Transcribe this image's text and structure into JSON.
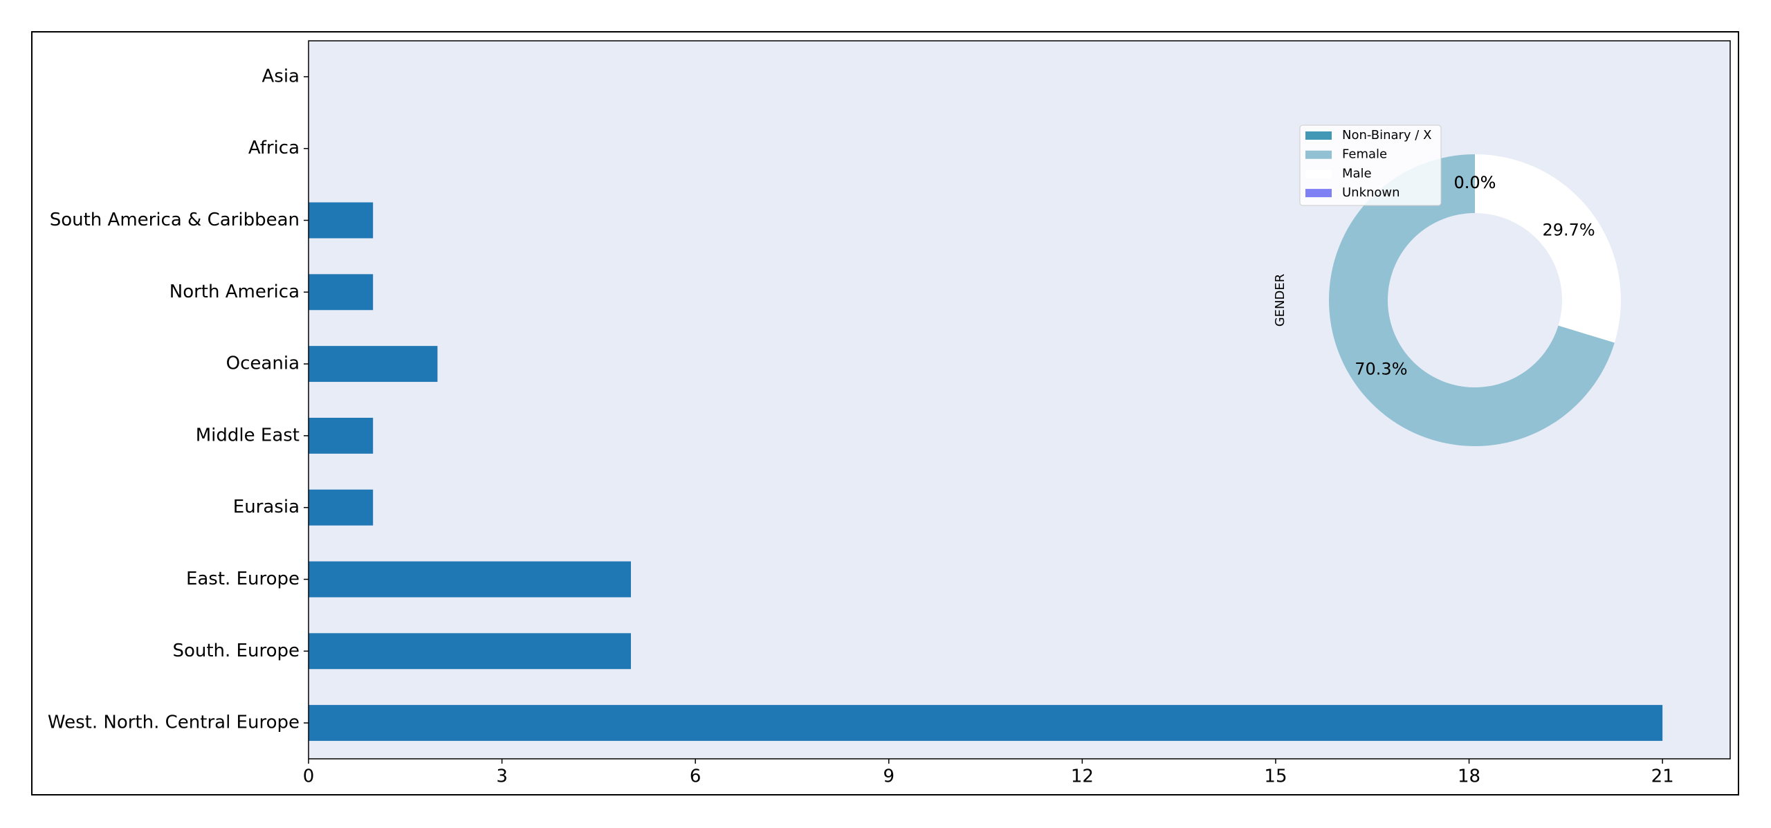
{
  "chart_data": [
    {
      "type": "barh",
      "categories": [
        "Asia",
        "Africa",
        "South America & Caribbean",
        "North America",
        "Oceania",
        "Middle East",
        "Eurasia",
        "East. Europe",
        "South. Europe",
        "West. North. Central Europe"
      ],
      "values": [
        0,
        0,
        1,
        1,
        2,
        1,
        1,
        5,
        5,
        21
      ],
      "color": "#1f77b4",
      "background": "#e8ecf7",
      "xlim": [
        0,
        22.05
      ],
      "xticks": [
        0,
        3,
        6,
        9,
        12,
        15,
        18,
        21
      ]
    },
    {
      "type": "donut",
      "ylabel": "GENDER",
      "labels": [
        "Non-Binary / X",
        "Female",
        "Male",
        "Unknown"
      ],
      "values": [
        0,
        70.3,
        29.7,
        0
      ],
      "value_labels": [
        "0.0%",
        "70.3%",
        "29.7%",
        "0.0%"
      ],
      "colors": [
        "#4298b5",
        "#92c1d3",
        "#ffffff",
        "#8080f5"
      ]
    }
  ]
}
